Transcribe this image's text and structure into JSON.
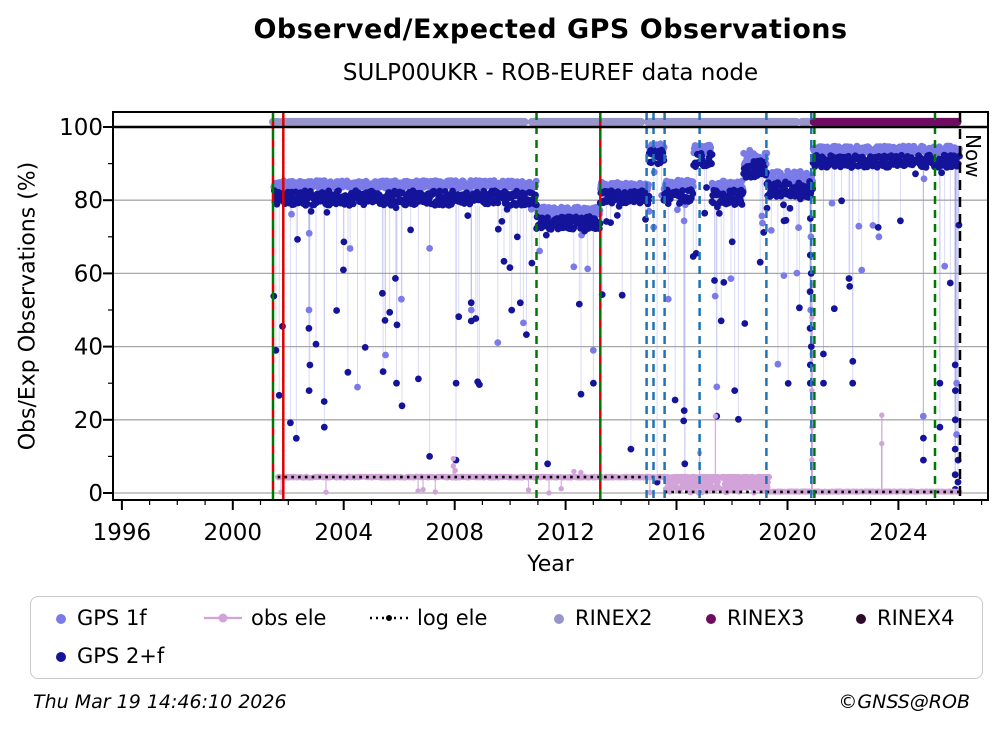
{
  "header": {
    "title": "Observed/Expected GPS Observations",
    "subtitle": "SULP00UKR - ROB-EUREF data node"
  },
  "footer": {
    "timestamp": "Thu Mar 19 14:46:10 2026",
    "credit": "©GNSS@ROB"
  },
  "legend": {
    "items": [
      {
        "id": "gps1f",
        "label": "GPS 1f",
        "marker": "dot",
        "color": "#7b7be8"
      },
      {
        "id": "obsele",
        "label": "obs ele",
        "marker": "linedot",
        "color": "#d2a3d8"
      },
      {
        "id": "logele",
        "label": "log ele",
        "marker": "dotline",
        "color": "#000000"
      },
      {
        "id": "rinex2",
        "label": "RINEX2",
        "marker": "dot",
        "color": "#9795ca"
      },
      {
        "id": "rinex3",
        "label": "RINEX3",
        "marker": "dot",
        "color": "#6f0c62"
      },
      {
        "id": "rinex4",
        "label": "RINEX4",
        "marker": "dot",
        "color": "#2e0b2a"
      },
      {
        "id": "gps2f",
        "label": "GPS 2+f",
        "marker": "dot",
        "color": "#14149a"
      }
    ]
  },
  "chart_data": {
    "type": "scatter",
    "title": "Observed/Expected GPS Observations",
    "subtitle": "SULP00UKR - ROB-EUREF data node",
    "xlabel": "Year",
    "ylabel": "Obs/Exp Observations (%)",
    "xlim": [
      1995.68,
      2027.23
    ],
    "ylim": [
      -1.9,
      104.1
    ],
    "xticks": [
      1996,
      2000,
      2004,
      2008,
      2012,
      2016,
      2020,
      2024
    ],
    "yticks": [
      0,
      20,
      40,
      60,
      80,
      100
    ],
    "grid_y": [
      0,
      20,
      40,
      60,
      80,
      100
    ],
    "hline": 100,
    "now": {
      "x": 2026.22,
      "label": "Now"
    },
    "legend_position": "bottom",
    "render": {
      "seed": 1337,
      "gps_radius": 3.4,
      "obs_radius": 2.7,
      "stem_gps": "rgba(148,148,226,0.35)",
      "stem_obs": "rgba(206,158,212,0.8)"
    },
    "colors": {
      "gps1f": "#7b7be8",
      "gps2f": "#14149a",
      "obs_ele": "#d2a3d8",
      "log_ele": "#000000",
      "rinex2": "#9795ca",
      "rinex3": "#6f0c62",
      "rinex4": "#2e0b2a",
      "event_green": "#007800",
      "event_blue": "#2273b5",
      "event_red": "#dc0000",
      "grid": "#a8a8a8",
      "now_line": "#000000"
    },
    "rinex_bars": {
      "y": 101.4,
      "rinex2_segments": [
        [
          2001.45,
          2001.63
        ],
        [
          2001.78,
          2010.52
        ],
        [
          2010.78,
          2014.72
        ],
        [
          2014.97,
          2020.32
        ],
        [
          2020.52,
          2020.74
        ]
      ],
      "rinex3_segments": [
        [
          2020.95,
          2026.13
        ]
      ]
    },
    "event_lines": [
      {
        "x": 2001.45,
        "style": "dashed",
        "color": "green-red"
      },
      {
        "x": 2001.82,
        "style": "solid",
        "color": "red"
      },
      {
        "x": 2010.95,
        "style": "dashed",
        "color": "green"
      },
      {
        "x": 2013.25,
        "style": "dashed",
        "color": "green-red"
      },
      {
        "x": 2014.92,
        "style": "dashed",
        "color": "blue"
      },
      {
        "x": 2015.17,
        "style": "dashed",
        "color": "blue"
      },
      {
        "x": 2015.57,
        "style": "dashed",
        "color": "blue"
      },
      {
        "x": 2016.83,
        "style": "dashed",
        "color": "blue"
      },
      {
        "x": 2019.24,
        "style": "dashed",
        "color": "blue"
      },
      {
        "x": 2020.86,
        "style": "dashed",
        "color": "blue"
      },
      {
        "x": 2020.97,
        "style": "dashed",
        "color": "green"
      },
      {
        "x": 2025.32,
        "style": "dashed",
        "color": "green"
      }
    ],
    "series": {
      "gps1f": {
        "label": "GPS 1f",
        "bands": [
          {
            "x0": 2001.48,
            "x1": 2010.95,
            "base": 84.3,
            "jitter": 1.1,
            "step": 0.022,
            "spike_prob": 0.045,
            "spike_min": 27
          },
          {
            "x0": 2010.95,
            "x1": 2013.25,
            "base": 76.8,
            "jitter": 1.4,
            "step": 0.022,
            "spike_prob": 0.04,
            "spike_min": 40
          },
          {
            "x0": 2013.25,
            "x1": 2015.02,
            "base": 83.8,
            "jitter": 1.1,
            "step": 0.022,
            "spike_prob": 0.04,
            "spike_min": 35
          },
          {
            "x0": 2015.02,
            "x1": 2015.55,
            "base": 94.3,
            "jitter": 1.2,
            "step": 0.022,
            "spike_prob": 0.1,
            "spike_min": 55
          },
          {
            "x0": 2015.55,
            "x1": 2016.62,
            "base": 84.2,
            "jitter": 1.3,
            "step": 0.022,
            "spike_prob": 0.06,
            "spike_min": 30
          },
          {
            "x0": 2016.62,
            "x1": 2017.28,
            "base": 93.8,
            "jitter": 1.3,
            "step": 0.022,
            "spike_prob": 0.08,
            "spike_min": 45
          },
          {
            "x0": 2017.28,
            "x1": 2018.42,
            "base": 84.0,
            "jitter": 1.3,
            "step": 0.022,
            "spike_prob": 0.06,
            "spike_min": 35
          },
          {
            "x0": 2018.42,
            "x1": 2019.26,
            "base": 91.5,
            "jitter": 2.2,
            "step": 0.022,
            "spike_prob": 0.08,
            "spike_min": 45
          },
          {
            "x0": 2019.26,
            "x1": 2020.92,
            "base": 86.0,
            "jitter": 2.0,
            "step": 0.022,
            "spike_prob": 0.09,
            "spike_min": 35
          },
          {
            "x0": 2020.92,
            "x1": 2026.22,
            "base": 93.8,
            "jitter": 1.0,
            "step": 0.022,
            "spike_prob": 0.035,
            "spike_min": 55
          }
        ],
        "extra": [
          {
            "x": 2002.75,
            "v": [
              50
            ]
          },
          {
            "x": 2008.6,
            "v": [
              50
            ]
          },
          {
            "x": 2013.0,
            "v": [
              39
            ]
          },
          {
            "x": 2017.45,
            "v": [
              29
            ]
          },
          {
            "x": 2020.84,
            "v": [
              50,
              70
            ]
          },
          {
            "x": 2023.3,
            "v": [
              70
            ]
          },
          {
            "x": 2024.9,
            "v": [
              21
            ]
          },
          {
            "x": 2026.1,
            "v": [
              30,
              16
            ]
          }
        ]
      },
      "gps2f": {
        "label": "GPS 2+f",
        "bands": [
          {
            "x0": 2001.48,
            "x1": 2010.95,
            "base": 80.6,
            "jitter": 2.0,
            "step": 0.022,
            "spike_prob": 0.085,
            "spike_min": 12
          },
          {
            "x0": 2010.95,
            "x1": 2013.25,
            "base": 73.8,
            "jitter": 1.8,
            "step": 0.022,
            "spike_prob": 0.07,
            "spike_min": 30
          },
          {
            "x0": 2013.25,
            "x1": 2015.02,
            "base": 80.8,
            "jitter": 1.8,
            "step": 0.022,
            "spike_prob": 0.08,
            "spike_min": 15
          },
          {
            "x0": 2015.02,
            "x1": 2015.55,
            "base": 91.8,
            "jitter": 2.0,
            "step": 0.022,
            "spike_prob": 0.12,
            "spike_min": 40
          },
          {
            "x0": 2015.55,
            "x1": 2016.62,
            "base": 81.0,
            "jitter": 2.0,
            "step": 0.022,
            "spike_prob": 0.1,
            "spike_min": 10
          },
          {
            "x0": 2016.62,
            "x1": 2017.28,
            "base": 91.0,
            "jitter": 2.0,
            "step": 0.022,
            "spike_prob": 0.1,
            "spike_min": 30
          },
          {
            "x0": 2017.28,
            "x1": 2018.42,
            "base": 80.8,
            "jitter": 2.0,
            "step": 0.022,
            "spike_prob": 0.1,
            "spike_min": 20
          },
          {
            "x0": 2018.42,
            "x1": 2019.26,
            "base": 88.5,
            "jitter": 2.5,
            "step": 0.022,
            "spike_prob": 0.1,
            "spike_min": 30
          },
          {
            "x0": 2019.26,
            "x1": 2020.92,
            "base": 83.0,
            "jitter": 2.2,
            "step": 0.022,
            "spike_prob": 0.12,
            "spike_min": 25
          },
          {
            "x0": 2020.92,
            "x1": 2026.22,
            "base": 90.6,
            "jitter": 1.7,
            "step": 0.022,
            "spike_prob": 0.05,
            "spike_min": 45
          }
        ],
        "extra": [
          {
            "x": 2001.55,
            "v": [
              39
            ]
          },
          {
            "x": 2002.75,
            "v": [
              28,
              45
            ]
          },
          {
            "x": 2003.3,
            "v": [
              25,
              18
            ]
          },
          {
            "x": 2004.15,
            "v": [
              33
            ]
          },
          {
            "x": 2005.9,
            "v": [
              30
            ]
          },
          {
            "x": 2007.1,
            "v": [
              10
            ]
          },
          {
            "x": 2008.05,
            "v": [
              9,
              30
            ]
          },
          {
            "x": 2008.6,
            "v": [
              47,
              52
            ]
          },
          {
            "x": 2011.35,
            "v": [
              8
            ]
          },
          {
            "x": 2012.55,
            "v": [
              27
            ]
          },
          {
            "x": 2013.0,
            "v": [
              30
            ]
          },
          {
            "x": 2014.35,
            "v": [
              12
            ]
          },
          {
            "x": 2015.3,
            "v": [
              3
            ]
          },
          {
            "x": 2016.3,
            "v": [
              2,
              8
            ]
          },
          {
            "x": 2017.45,
            "v": [
              21
            ]
          },
          {
            "x": 2018.1,
            "v": [
              28
            ]
          },
          {
            "x": 2020.82,
            "v": [
              35,
              45,
              55,
              65,
              75,
              30
            ]
          },
          {
            "x": 2020.86,
            "v": [
              40,
              60
            ]
          },
          {
            "x": 2021.3,
            "v": [
              30,
              38
            ]
          },
          {
            "x": 2022.35,
            "v": [
              30,
              36
            ]
          },
          {
            "x": 2024.9,
            "v": [
              15,
              9
            ]
          },
          {
            "x": 2025.5,
            "v": [
              18,
              30
            ]
          },
          {
            "x": 2026.05,
            "v": [
              1,
              5,
              12,
              20,
              28,
              35
            ]
          },
          {
            "x": 2026.15,
            "v": [
              3,
              9
            ]
          }
        ]
      },
      "obs_ele": {
        "label": "obs ele",
        "bands": [
          {
            "x0": 2001.62,
            "x1": 2015.58,
            "base": 4.35,
            "jitter": 0.22,
            "step": 0.02,
            "down_prob": 0.012
          },
          {
            "x0": 2015.58,
            "x1": 2019.35,
            "base": 4.35,
            "jitter": 0.18,
            "step": 0.012,
            "mess": {
              "prob": 0.55,
              "lo": 0,
              "hi": 4.2
            }
          },
          {
            "x0": 2019.35,
            "x1": 2026.22,
            "base": 0.4,
            "jitter": 0.12,
            "step": 0.02
          }
        ],
        "extra": [
          {
            "x": 2007.95,
            "v": [
              7.4,
              9.4
            ]
          },
          {
            "x": 2008.02,
            "v": [
              6.2
            ]
          },
          {
            "x": 2012.3,
            "v": [
              5.9
            ]
          },
          {
            "x": 2012.55,
            "v": [
              5.6
            ]
          },
          {
            "x": 2016.83,
            "v": [
              11.0
            ]
          },
          {
            "x": 2017.4,
            "v": [
              21.0
            ]
          },
          {
            "x": 2020.88,
            "v": [
              57,
              48,
              38,
              28,
              18,
              9
            ]
          },
          {
            "x": 2023.4,
            "v": [
              21.3,
              13.5
            ]
          }
        ]
      },
      "log_ele": {
        "label": "log ele",
        "segments": [
          {
            "x0": 2001.62,
            "x1": 2015.57,
            "y": 4.35
          },
          {
            "x0": 2015.57,
            "x1": 2026.25,
            "y": 0.32
          }
        ]
      }
    }
  }
}
